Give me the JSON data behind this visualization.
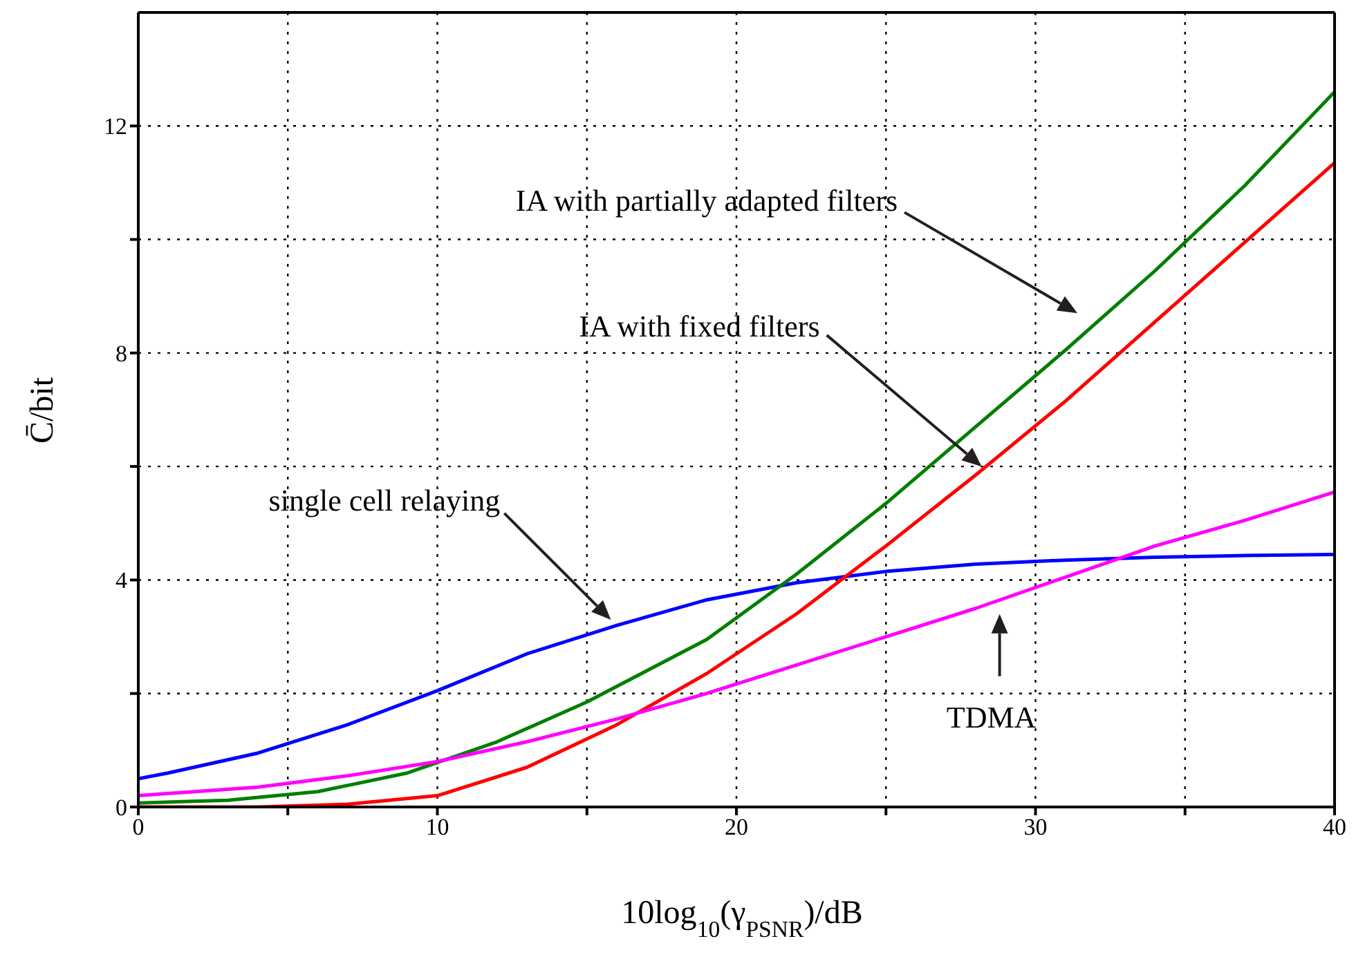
{
  "chart_data": {
    "type": "line",
    "xlabel": "10log$_{10}$(γ$_{PSNR}$)/dB",
    "ylabel": "C̄/bit",
    "xlim": [
      0,
      40
    ],
    "xticks": [
      0,
      {
        "value": 5,
        "label": null
      },
      10,
      {
        "value": 15,
        "label": null
      },
      20,
      {
        "value": 25,
        "label": null
      },
      30,
      {
        "value": 35,
        "label": null
      },
      40
    ],
    "ylim": [
      0,
      14
    ],
    "yticks": [
      0,
      {
        "value": 2,
        "label": null
      },
      4,
      {
        "value": 6,
        "label": null
      },
      8,
      {
        "value": 10,
        "label": null
      },
      12
    ],
    "grid": true,
    "marker": "none",
    "line_style": "solid",
    "series": [
      {
        "color": "#0000ff",
        "x": [
          0,
          1,
          4,
          7,
          10,
          13,
          16,
          19,
          22,
          25,
          28,
          31,
          34,
          37,
          40
        ],
        "values": [
          0.5,
          0.6,
          0.95,
          1.45,
          2.05,
          2.7,
          3.2,
          3.65,
          3.95,
          4.15,
          4.28,
          4.35,
          4.4,
          4.43,
          4.45
        ]
      },
      {
        "color": "#007f00",
        "x": [
          0,
          3,
          6,
          9,
          12,
          15,
          19,
          22,
          25,
          28,
          31,
          34,
          37,
          40
        ],
        "values": [
          0.07,
          0.12,
          0.27,
          0.6,
          1.15,
          1.85,
          2.95,
          4.1,
          5.35,
          6.7,
          8.05,
          9.45,
          10.95,
          12.6
        ]
      },
      {
        "color": "#ff0000",
        "x": [
          0,
          4,
          7,
          10,
          13,
          16,
          19,
          22,
          25,
          28,
          31,
          34,
          37,
          40
        ],
        "values": [
          0,
          0,
          0.05,
          0.2,
          0.7,
          1.45,
          2.35,
          3.4,
          4.6,
          5.85,
          7.15,
          8.55,
          9.95,
          11.35
        ]
      },
      {
        "color": "#ff00ff",
        "x": [
          0,
          4,
          7,
          10,
          13,
          16,
          19,
          22,
          25,
          28,
          31,
          34,
          37,
          40
        ],
        "values": [
          0.2,
          0.35,
          0.55,
          0.8,
          1.15,
          1.55,
          2.0,
          2.5,
          3.0,
          3.5,
          4.05,
          4.6,
          5.05,
          5.55
        ]
      }
    ],
    "annotations": [
      "IA with partially adapted filters",
      "IA with fixed filters",
      "single cell relaying",
      "TDMA"
    ]
  }
}
